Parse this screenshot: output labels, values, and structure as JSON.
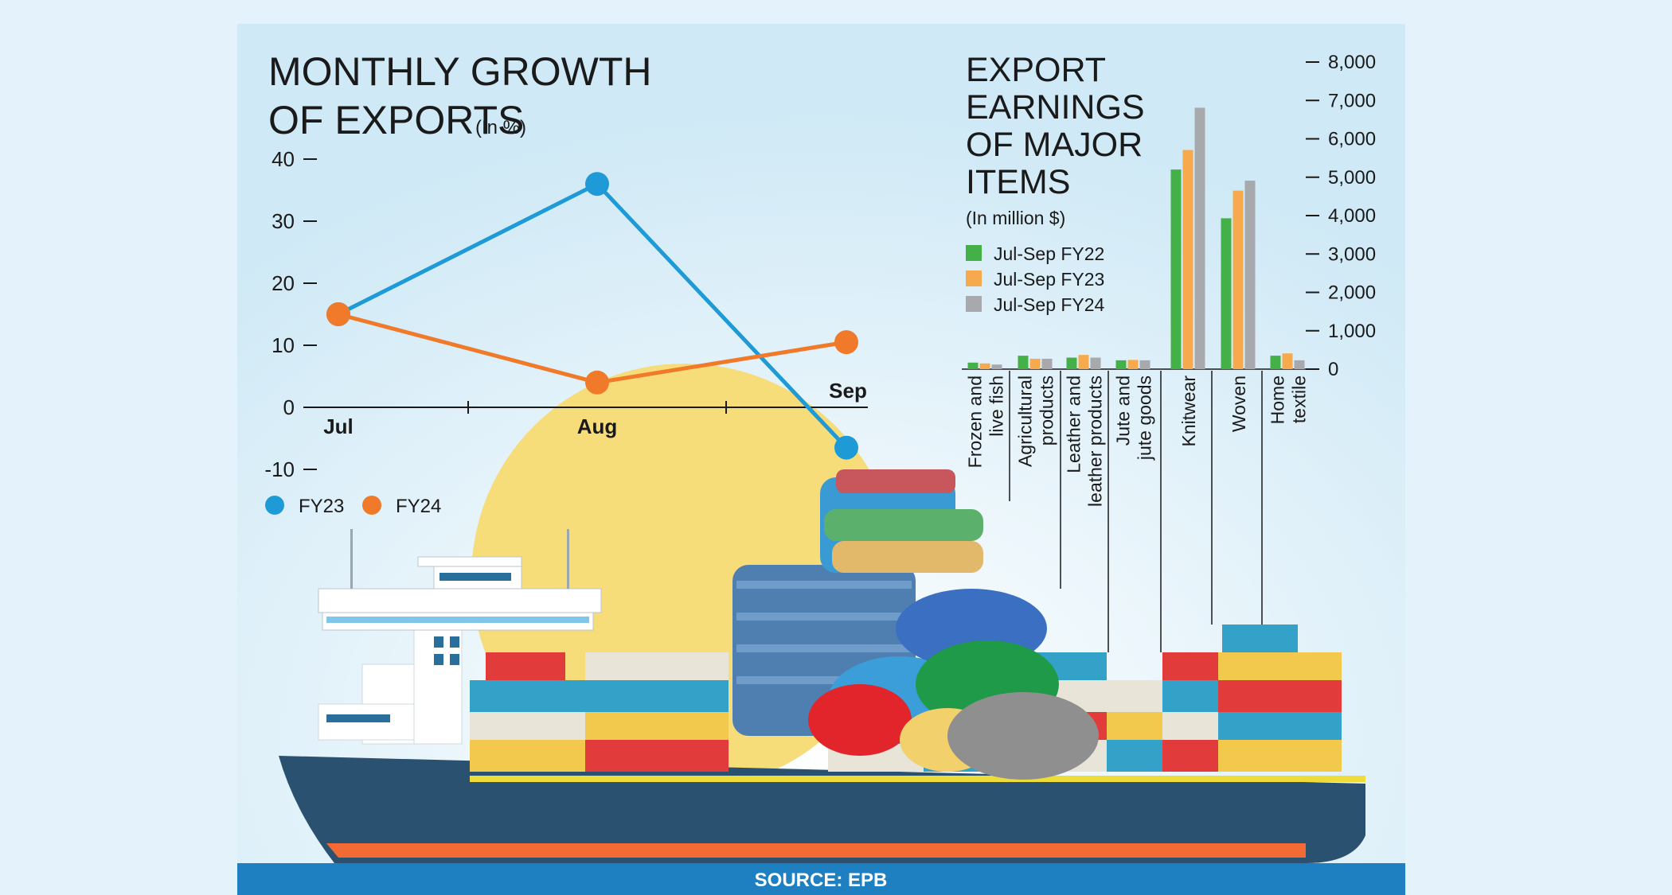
{
  "colors": {
    "fy23": "#1e9ad6",
    "fy24": "#f07a2a",
    "fy22_bar": "#43b048",
    "fy23_bar": "#f7a94d",
    "fy24_bar": "#a7a9ac",
    "footer": "#1e7fc1",
    "sun": "#f7dc7a",
    "hull": "#2a5170",
    "hull_stripe": "#f26a34"
  },
  "line_chart": {
    "title_line1": "MONTHLY GROWTH",
    "title_line2": "OF EXPORTS",
    "unit": "(In %)",
    "legend": [
      {
        "name": "FY23",
        "color": "#1e9ad6"
      },
      {
        "name": "FY24",
        "color": "#f07a2a"
      }
    ],
    "y_ticks": [
      "40",
      "30",
      "20",
      "10",
      "0",
      "-10"
    ],
    "x_labels": [
      "Jul",
      "Aug",
      "Sep"
    ]
  },
  "bar_chart": {
    "title_lines": [
      "EXPORT",
      "EARNINGS",
      "OF MAJOR",
      "ITEMS"
    ],
    "unit": "(In million $)",
    "legend": [
      {
        "name": "Jul-Sep FY22",
        "color": "#43b048"
      },
      {
        "name": "Jul-Sep FY23",
        "color": "#f7a94d"
      },
      {
        "name": "Jul-Sep FY24",
        "color": "#a7a9ac"
      }
    ],
    "y_ticks": [
      "8,000",
      "7,000",
      "6,000",
      "5,000",
      "4,000",
      "3,000",
      "2,000",
      "1,000",
      "0"
    ],
    "categories": [
      [
        "Frozen and",
        "live fish"
      ],
      [
        "Agricultural",
        "products"
      ],
      [
        "Leather and",
        "leather products"
      ],
      [
        "Jute and",
        "jute goods"
      ],
      [
        "Knitwear"
      ],
      [
        "Woven"
      ],
      [
        "Home",
        "textile"
      ]
    ]
  },
  "footer": {
    "source": "SOURCE: EPB"
  },
  "chart_data": [
    {
      "type": "line",
      "title": "MONTHLY GROWTH OF EXPORTS",
      "unit": "(In %)",
      "x": [
        "Jul",
        "Aug",
        "Sep"
      ],
      "series": [
        {
          "name": "FY23",
          "values": [
            15,
            36,
            -6.5
          ]
        },
        {
          "name": "FY24",
          "values": [
            15,
            4,
            10.5
          ]
        }
      ],
      "ylim": [
        -10,
        40
      ],
      "legend": "bottom-left"
    },
    {
      "type": "bar",
      "title": "EXPORT EARNINGS OF MAJOR ITEMS",
      "unit": "(In million $)",
      "categories": [
        "Frozen and live fish",
        "Agricultural products",
        "Leather and leather products",
        "Jute and jute goods",
        "Knitwear",
        "Woven",
        "Home textile"
      ],
      "series": [
        {
          "name": "Jul-Sep FY22",
          "values": [
            170,
            350,
            300,
            230,
            5200,
            3930,
            350
          ]
        },
        {
          "name": "Jul-Sep FY23",
          "values": [
            150,
            270,
            370,
            240,
            5710,
            4650,
            410
          ]
        },
        {
          "name": "Jul-Sep FY24",
          "values": [
            120,
            270,
            300,
            230,
            6810,
            4910,
            230
          ]
        }
      ],
      "ylim": [
        0,
        8000
      ],
      "legend": "top-left"
    }
  ]
}
